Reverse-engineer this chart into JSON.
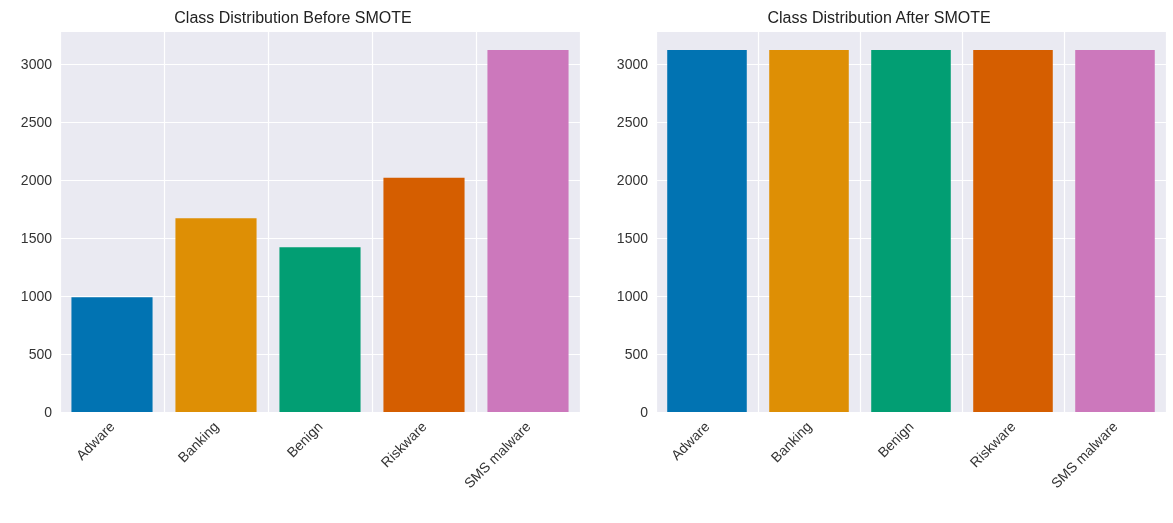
{
  "chart_data": [
    {
      "type": "bar",
      "title": "Class Distribution Before SMOTE",
      "categories": [
        "Adware",
        "Banking",
        "Benign",
        "Riskware",
        "SMS malware"
      ],
      "values": [
        990,
        1670,
        1420,
        2020,
        3120
      ],
      "colors": [
        "#0173b2",
        "#de8f05",
        "#029e73",
        "#d55e00",
        "#cc78bc"
      ],
      "ylim": [
        0,
        3276
      ],
      "yticks": [
        0,
        500,
        1000,
        1500,
        2000,
        2500,
        3000
      ],
      "grid": true
    },
    {
      "type": "bar",
      "title": "Class Distribution After SMOTE",
      "categories": [
        "Adware",
        "Banking",
        "Benign",
        "Riskware",
        "SMS malware"
      ],
      "values": [
        3120,
        3120,
        3120,
        3120,
        3120
      ],
      "colors": [
        "#0173b2",
        "#de8f05",
        "#029e73",
        "#d55e00",
        "#cc78bc"
      ],
      "ylim": [
        0,
        3276
      ],
      "yticks": [
        0,
        500,
        1000,
        1500,
        2000,
        2500,
        3000
      ],
      "grid": true
    }
  ]
}
